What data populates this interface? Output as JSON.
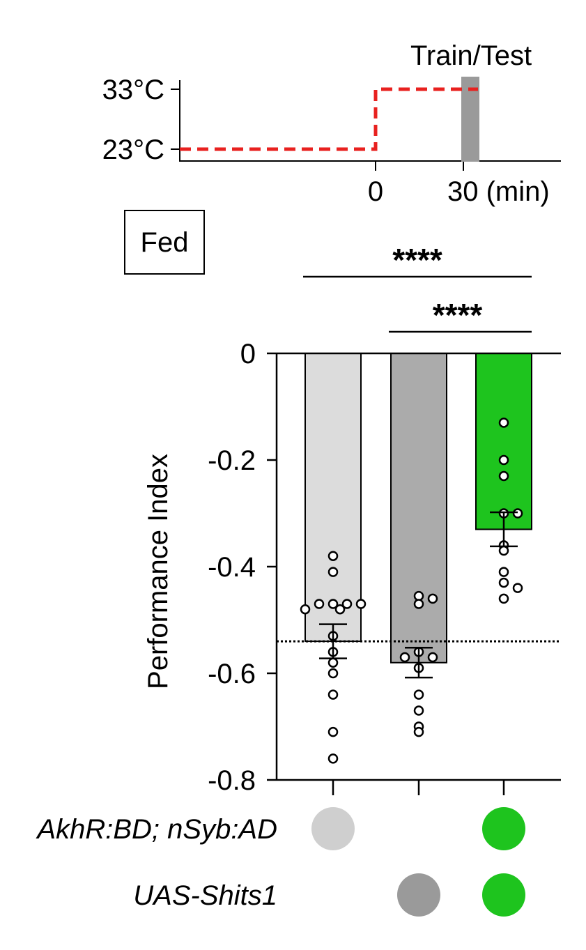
{
  "protocol": {
    "y_ticks": [
      "33°C",
      "23°C"
    ],
    "x_ticks": [
      "0",
      "30 (min)"
    ],
    "event_label": "Train/Test",
    "line_color": "#e8211f",
    "bar_color": "#9a9a9a"
  },
  "condition_label": "Fed",
  "significance": [
    {
      "label": "****",
      "from": 0,
      "to": 2
    },
    {
      "label": "****",
      "from": 1,
      "to": 2
    }
  ],
  "chart_data": {
    "type": "bar",
    "ylabel": "Performance Index",
    "ylim": [
      -0.8,
      0
    ],
    "yticks": [
      "0",
      "-0.2",
      "-0.4",
      "-0.6",
      "-0.8"
    ],
    "reference_line": -0.54,
    "groups": [
      {
        "mean": -0.54,
        "sem": 0.032,
        "color": "#dcdcdc",
        "points": [
          -0.38,
          -0.41,
          -0.47,
          -0.47,
          -0.47,
          -0.47,
          -0.48,
          -0.48,
          -0.53,
          -0.56,
          -0.58,
          -0.6,
          -0.64,
          -0.71,
          -0.76
        ]
      },
      {
        "mean": -0.58,
        "sem": 0.028,
        "color": "#ababab",
        "points": [
          -0.455,
          -0.46,
          -0.47,
          -0.56,
          -0.57,
          -0.57,
          -0.59,
          -0.64,
          -0.67,
          -0.7,
          -0.71
        ]
      },
      {
        "mean": -0.33,
        "sem": 0.032,
        "color": "#1ec41e",
        "points": [
          -0.13,
          -0.2,
          -0.23,
          -0.3,
          -0.3,
          -0.36,
          -0.37,
          -0.41,
          -0.43,
          -0.44,
          -0.46
        ]
      }
    ]
  },
  "genotypes": [
    {
      "label": "AkhR:BD; nSyb:AD",
      "present": [
        true,
        false,
        true
      ],
      "colors": [
        "#cfcfcf",
        null,
        "#1ec41e"
      ]
    },
    {
      "label": "UAS-Shits1",
      "present": [
        false,
        true,
        true
      ],
      "colors": [
        null,
        "#9a9a9a",
        "#1ec41e"
      ]
    }
  ]
}
